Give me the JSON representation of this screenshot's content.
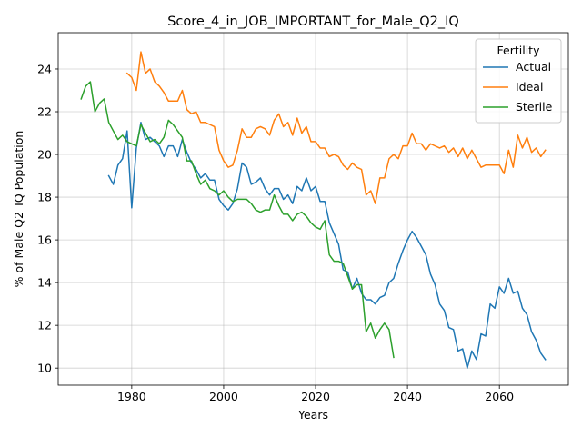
{
  "chart_data": {
    "type": "line",
    "title": "Score_4_in_JOB_IMPORTANT_for_Male_Q2_IQ",
    "xlabel": "Years",
    "ylabel": "% of Male Q2_IQ Population",
    "xlim": [
      1964,
      2075
    ],
    "ylim": [
      9.2,
      25.7
    ],
    "xticks": [
      1980,
      2000,
      2020,
      2040,
      2060
    ],
    "yticks": [
      10,
      12,
      14,
      16,
      18,
      20,
      22,
      24
    ],
    "grid": true,
    "legend": {
      "title": "Fertility",
      "position": "upper-right"
    },
    "series": [
      {
        "name": "Actual",
        "color": "#1f77b4",
        "x": [
          1975,
          1976,
          1977,
          1978,
          1979,
          1980,
          1981,
          1982,
          1983,
          1984,
          1985,
          1986,
          1987,
          1988,
          1989,
          1990,
          1991,
          1992,
          1993,
          1994,
          1995,
          1996,
          1997,
          1998,
          1999,
          2000,
          2001,
          2002,
          2003,
          2004,
          2005,
          2006,
          2007,
          2008,
          2009,
          2010,
          2011,
          2012,
          2013,
          2014,
          2015,
          2016,
          2017,
          2018,
          2019,
          2020,
          2021,
          2022,
          2023,
          2024,
          2025,
          2026,
          2027,
          2028,
          2029,
          2030,
          2031,
          2032,
          2033,
          2034,
          2035,
          2036,
          2037,
          2038,
          2039,
          2040,
          2041,
          2042,
          2043,
          2044,
          2045,
          2046,
          2047,
          2048,
          2049,
          2050,
          2051,
          2052,
          2053,
          2054,
          2055,
          2056,
          2057,
          2058,
          2059,
          2060,
          2061,
          2062,
          2063,
          2064,
          2065,
          2066,
          2067,
          2068,
          2069,
          2070
        ],
        "values": [
          19.0,
          18.6,
          19.5,
          19.8,
          21.1,
          17.5,
          20.3,
          21.5,
          20.7,
          20.8,
          20.6,
          20.4,
          19.9,
          20.4,
          20.4,
          19.9,
          20.7,
          20.1,
          19.6,
          19.3,
          18.9,
          19.1,
          18.8,
          18.8,
          17.9,
          17.6,
          17.4,
          17.7,
          18.4,
          19.6,
          19.4,
          18.6,
          18.7,
          18.9,
          18.4,
          18.1,
          18.4,
          18.4,
          17.9,
          18.1,
          17.7,
          18.5,
          18.3,
          18.9,
          18.3,
          18.5,
          17.8,
          17.8,
          16.8,
          16.3,
          15.8,
          14.6,
          14.5,
          13.7,
          14.2,
          13.5,
          13.2,
          13.2,
          13.0,
          13.3,
          13.4,
          14.0,
          14.2,
          14.9,
          15.5,
          16.0,
          16.4,
          16.1,
          15.7,
          15.3,
          14.4,
          13.9,
          13.0,
          12.7,
          11.9,
          11.8,
          10.8,
          10.9,
          10.0,
          10.8,
          10.4,
          11.6,
          11.5,
          13.0,
          12.8,
          13.8,
          13.5,
          14.2,
          13.5,
          13.6,
          12.8,
          12.5,
          11.7,
          11.3,
          10.7,
          10.4
        ]
      },
      {
        "name": "Ideal",
        "color": "#ff7f0e",
        "x": [
          1979,
          1980,
          1981,
          1982,
          1983,
          1984,
          1985,
          1986,
          1987,
          1988,
          1989,
          1990,
          1991,
          1992,
          1993,
          1994,
          1995,
          1996,
          1997,
          1998,
          1999,
          2000,
          2001,
          2002,
          2003,
          2004,
          2005,
          2006,
          2007,
          2008,
          2009,
          2010,
          2011,
          2012,
          2013,
          2014,
          2015,
          2016,
          2017,
          2018,
          2019,
          2020,
          2021,
          2022,
          2023,
          2024,
          2025,
          2026,
          2027,
          2028,
          2029,
          2030,
          2031,
          2032,
          2033,
          2034,
          2035,
          2036,
          2037,
          2038,
          2039,
          2040,
          2041,
          2042,
          2043,
          2044,
          2045,
          2046,
          2047,
          2048,
          2049,
          2050,
          2051,
          2052,
          2053,
          2054,
          2055,
          2056,
          2057,
          2058,
          2059,
          2060,
          2061,
          2062,
          2063,
          2064,
          2065,
          2066,
          2067,
          2068,
          2069,
          2070
        ],
        "values": [
          23.8,
          23.6,
          23.0,
          24.8,
          23.8,
          24.0,
          23.4,
          23.2,
          22.9,
          22.5,
          22.5,
          22.5,
          23.0,
          22.1,
          21.9,
          22.0,
          21.5,
          21.5,
          21.4,
          21.3,
          20.2,
          19.7,
          19.4,
          19.5,
          20.2,
          21.2,
          20.8,
          20.8,
          21.2,
          21.3,
          21.2,
          20.9,
          21.6,
          21.9,
          21.3,
          21.5,
          20.9,
          21.7,
          21.0,
          21.3,
          20.6,
          20.6,
          20.3,
          20.3,
          19.9,
          20.0,
          19.9,
          19.5,
          19.3,
          19.6,
          19.4,
          19.3,
          18.1,
          18.3,
          17.7,
          18.9,
          18.9,
          19.8,
          20.0,
          19.8,
          20.4,
          20.4,
          21.0,
          20.5,
          20.5,
          20.2,
          20.5,
          20.4,
          20.3,
          20.4,
          20.1,
          20.3,
          19.9,
          20.3,
          19.8,
          20.2,
          19.8,
          19.4,
          19.5,
          19.5,
          19.5,
          19.5,
          19.1,
          20.2,
          19.4,
          20.9,
          20.3,
          20.8,
          20.1,
          20.3,
          19.9,
          20.2
        ]
      },
      {
        "name": "Sterile",
        "color": "#2ca02c",
        "x": [
          1969,
          1970,
          1971,
          1972,
          1973,
          1974,
          1975,
          1976,
          1977,
          1978,
          1979,
          1980,
          1981,
          1982,
          1983,
          1984,
          1985,
          1986,
          1987,
          1988,
          1989,
          1990,
          1991,
          1992,
          1993,
          1994,
          1995,
          1996,
          1997,
          1998,
          1999,
          2000,
          2001,
          2002,
          2003,
          2004,
          2005,
          2006,
          2007,
          2008,
          2009,
          2010,
          2011,
          2012,
          2013,
          2014,
          2015,
          2016,
          2017,
          2018,
          2019,
          2020,
          2021,
          2022,
          2023,
          2024,
          2025,
          2026,
          2027,
          2028,
          2029,
          2030,
          2031,
          2032,
          2033,
          2034,
          2035,
          2036,
          2037
        ],
        "values": [
          22.6,
          23.2,
          23.4,
          22.0,
          22.4,
          22.6,
          21.5,
          21.1,
          20.7,
          20.9,
          20.6,
          20.5,
          20.4,
          21.4,
          21.0,
          20.6,
          20.7,
          20.5,
          20.8,
          21.6,
          21.4,
          21.1,
          20.8,
          19.7,
          19.7,
          19.1,
          18.6,
          18.8,
          18.4,
          18.3,
          18.1,
          18.3,
          18.0,
          17.8,
          17.9,
          17.9,
          17.9,
          17.7,
          17.4,
          17.3,
          17.4,
          17.4,
          18.1,
          17.6,
          17.2,
          17.2,
          16.9,
          17.2,
          17.3,
          17.1,
          16.8,
          16.6,
          16.5,
          16.9,
          15.3,
          15.0,
          15.0,
          14.9,
          14.3,
          13.7,
          13.9,
          13.9,
          11.7,
          12.1,
          11.4,
          11.8,
          12.1,
          11.8,
          10.5
        ]
      }
    ]
  }
}
